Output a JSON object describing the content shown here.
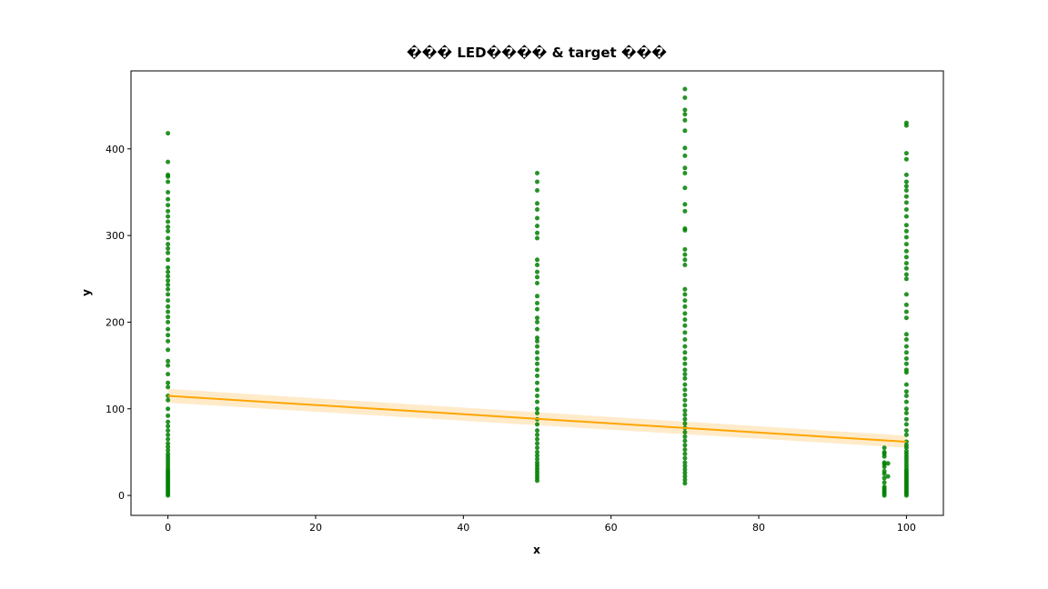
{
  "chart_data": {
    "type": "scatter",
    "title": "��� LED���� & target ���",
    "xlabel": "x",
    "ylabel": "y",
    "xlim": [
      -5,
      105
    ],
    "ylim": [
      -23,
      490
    ],
    "xticks": [
      0,
      20,
      40,
      60,
      80,
      100
    ],
    "yticks": [
      0,
      100,
      200,
      300,
      400
    ],
    "grid": false,
    "colors": {
      "points": "#007f00",
      "regression": "#ffa500",
      "confidence_band": "#ffe4b8"
    },
    "series": [
      {
        "x": 0,
        "values": [
          0,
          2,
          4,
          6,
          8,
          10,
          12,
          14,
          16,
          18,
          20,
          22,
          24,
          26,
          28,
          30,
          33,
          36,
          39,
          42,
          45,
          48,
          52,
          56,
          60,
          65,
          70,
          75,
          80,
          85,
          92,
          100,
          110,
          115,
          125,
          130,
          140,
          150,
          155,
          168,
          178,
          185,
          192,
          200,
          206,
          212,
          218,
          225,
          232,
          238,
          243,
          248,
          253,
          258,
          263,
          272,
          280,
          285,
          290,
          297,
          305,
          310,
          316,
          322,
          328,
          335,
          342,
          350,
          362,
          368,
          370,
          385,
          418
        ]
      },
      {
        "x": 50,
        "values": [
          17,
          20,
          23,
          26,
          29,
          32,
          35,
          38,
          42,
          46,
          50,
          55,
          60,
          65,
          70,
          75,
          82,
          88,
          95,
          100,
          108,
          115,
          122,
          130,
          138,
          145,
          152,
          158,
          165,
          172,
          178,
          182,
          192,
          200,
          205,
          215,
          222,
          230,
          245,
          252,
          258,
          266,
          272,
          297,
          303,
          311,
          320,
          330,
          337,
          352,
          362,
          372
        ]
      },
      {
        "x": 70,
        "values": [
          14,
          18,
          22,
          26,
          30,
          34,
          38,
          43,
          48,
          53,
          58,
          63,
          68,
          73,
          78,
          83,
          88,
          93,
          98,
          104,
          110,
          116,
          122,
          128,
          135,
          140,
          145,
          152,
          158,
          165,
          172,
          180,
          188,
          196,
          203,
          210,
          218,
          225,
          232,
          238,
          266,
          272,
          278,
          284,
          306,
          308,
          328,
          336,
          355,
          372,
          378,
          392,
          401,
          421,
          433,
          440,
          445,
          459,
          469
        ]
      },
      {
        "x": 97,
        "values": [
          0,
          2,
          4,
          6,
          8,
          10,
          15,
          20,
          25,
          28,
          33,
          36,
          38,
          45,
          48,
          50,
          55
        ]
      },
      {
        "x": 97.5,
        "values": [
          22,
          37
        ]
      },
      {
        "x": 100,
        "values": [
          0,
          2,
          4,
          6,
          8,
          10,
          12,
          14,
          16,
          18,
          20,
          22,
          24,
          26,
          28,
          30,
          33,
          36,
          39,
          42,
          45,
          48,
          51,
          55,
          58,
          62,
          70,
          75,
          82,
          88,
          95,
          100,
          108,
          115,
          120,
          128,
          142,
          145,
          152,
          158,
          165,
          172,
          180,
          186,
          205,
          212,
          220,
          232,
          250,
          255,
          262,
          268,
          275,
          282,
          290,
          298,
          305,
          312,
          322,
          330,
          338,
          345,
          352,
          357,
          362,
          370,
          388,
          395,
          427,
          430
        ]
      }
    ],
    "regression": {
      "x": [
        0,
        100
      ],
      "y": [
        115,
        62
      ],
      "ci_lower": [
        107,
        55
      ],
      "ci_upper": [
        123,
        69
      ]
    }
  }
}
